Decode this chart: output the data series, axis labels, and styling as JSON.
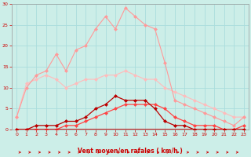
{
  "xlabel": "Vent moyen/en rafales ( km/h )",
  "xlim": [
    -0.5,
    23.5
  ],
  "ylim": [
    0,
    30
  ],
  "xticks": [
    0,
    1,
    2,
    3,
    4,
    5,
    6,
    7,
    8,
    9,
    10,
    11,
    12,
    13,
    14,
    15,
    16,
    17,
    18,
    19,
    20,
    21,
    22,
    23
  ],
  "yticks": [
    0,
    5,
    10,
    15,
    20,
    25,
    30
  ],
  "bg_color": "#cceee8",
  "grid_color": "#aadddd",
  "line1_x": [
    0,
    1,
    2,
    3,
    4,
    5,
    6,
    7,
    8,
    9,
    10,
    11,
    12,
    13,
    14,
    15,
    16,
    17,
    18,
    19,
    20,
    21,
    22,
    23
  ],
  "line1_y": [
    3,
    10,
    13,
    14,
    18,
    14,
    19,
    20,
    24,
    27,
    24,
    29,
    27,
    25,
    24,
    16,
    7,
    6,
    5,
    4,
    3,
    2,
    1,
    3
  ],
  "line1_color": "#ff9999",
  "line1_marker": "D",
  "line1_ms": 2.5,
  "line2_x": [
    0,
    1,
    2,
    3,
    4,
    5,
    6,
    7,
    8,
    9,
    10,
    11,
    12,
    13,
    14,
    15,
    16,
    17,
    18,
    19,
    20,
    21,
    22,
    23
  ],
  "line2_y": [
    3,
    11,
    12,
    13,
    12,
    10,
    11,
    12,
    12,
    13,
    13,
    14,
    13,
    12,
    12,
    10,
    9,
    8,
    7,
    6,
    5,
    4,
    3,
    3
  ],
  "line2_color": "#ffbbbb",
  "line2_marker": "D",
  "line2_ms": 2.5,
  "line3_x": [
    0,
    1,
    2,
    3,
    4,
    5,
    6,
    7,
    8,
    9,
    10,
    11,
    12,
    13,
    14,
    15,
    16,
    17,
    18,
    19,
    20,
    21,
    22,
    23
  ],
  "line3_y": [
    0,
    0,
    1,
    1,
    1,
    2,
    2,
    3,
    5,
    6,
    8,
    7,
    7,
    7,
    5,
    2,
    1,
    1,
    0,
    0,
    0,
    0,
    0,
    0
  ],
  "line3_color": "#bb0000",
  "line3_marker": "D",
  "line3_ms": 2.5,
  "line4_x": [
    0,
    1,
    2,
    3,
    4,
    5,
    6,
    7,
    8,
    9,
    10,
    11,
    12,
    13,
    14,
    15,
    16,
    17,
    18,
    19,
    20,
    21,
    22,
    23
  ],
  "line4_y": [
    0,
    0,
    0,
    0,
    0,
    1,
    1,
    2,
    3,
    4,
    5,
    6,
    6,
    6,
    6,
    5,
    3,
    2,
    1,
    1,
    1,
    0,
    0,
    1
  ],
  "line4_color": "#ff4444",
  "line4_marker": "D",
  "line4_ms": 2.5,
  "line5_x": [
    0,
    23
  ],
  "line5_y": [
    0,
    0
  ],
  "line5_color": "#cc0000",
  "arrow_color": "#cc0000"
}
